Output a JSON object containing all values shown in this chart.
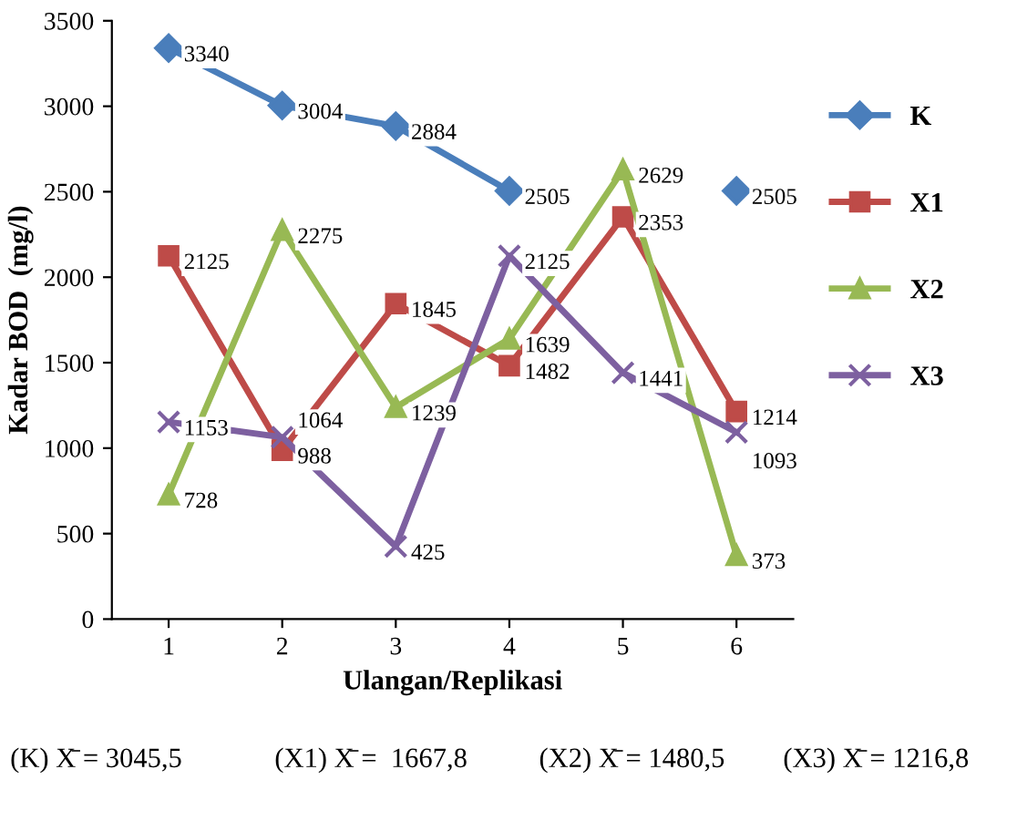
{
  "chart_data": {
    "type": "line",
    "xlabel": "Ulangan/Replikasi",
    "ylabel": "Kadar BOD  (mg/l)",
    "categories": [
      "1",
      "2",
      "3",
      "4",
      "5",
      "6"
    ],
    "series": [
      {
        "name": "K",
        "color": "#4a7ebb",
        "marker": "diamond",
        "values": [
          3340,
          3004,
          2884,
          2505,
          null,
          2505
        ]
      },
      {
        "name": "X1",
        "color": "#be4b48",
        "marker": "square",
        "values": [
          2125,
          988,
          1845,
          1482,
          2353,
          1214
        ]
      },
      {
        "name": "X2",
        "color": "#98b954",
        "marker": "triangle",
        "values": [
          728,
          2275,
          1239,
          1639,
          2629,
          373
        ]
      },
      {
        "name": "X3",
        "color": "#7d60a0",
        "marker": "cross",
        "values": [
          1153,
          1064,
          425,
          2125,
          1441,
          1093
        ]
      }
    ],
    "ylim": [
      0,
      3500
    ],
    "yticks": [
      0,
      500,
      1000,
      1500,
      2000,
      2500,
      3000,
      3500
    ],
    "data_labels": true,
    "legend": "right",
    "grid": false,
    "line_style": "solid",
    "annotations": [
      "(K) X̄ = 3045,5",
      "(X1) X̄ =  1667,8",
      "(X2) X̄ = 1480,5",
      "(X3) X̄ = 1216,8"
    ]
  }
}
